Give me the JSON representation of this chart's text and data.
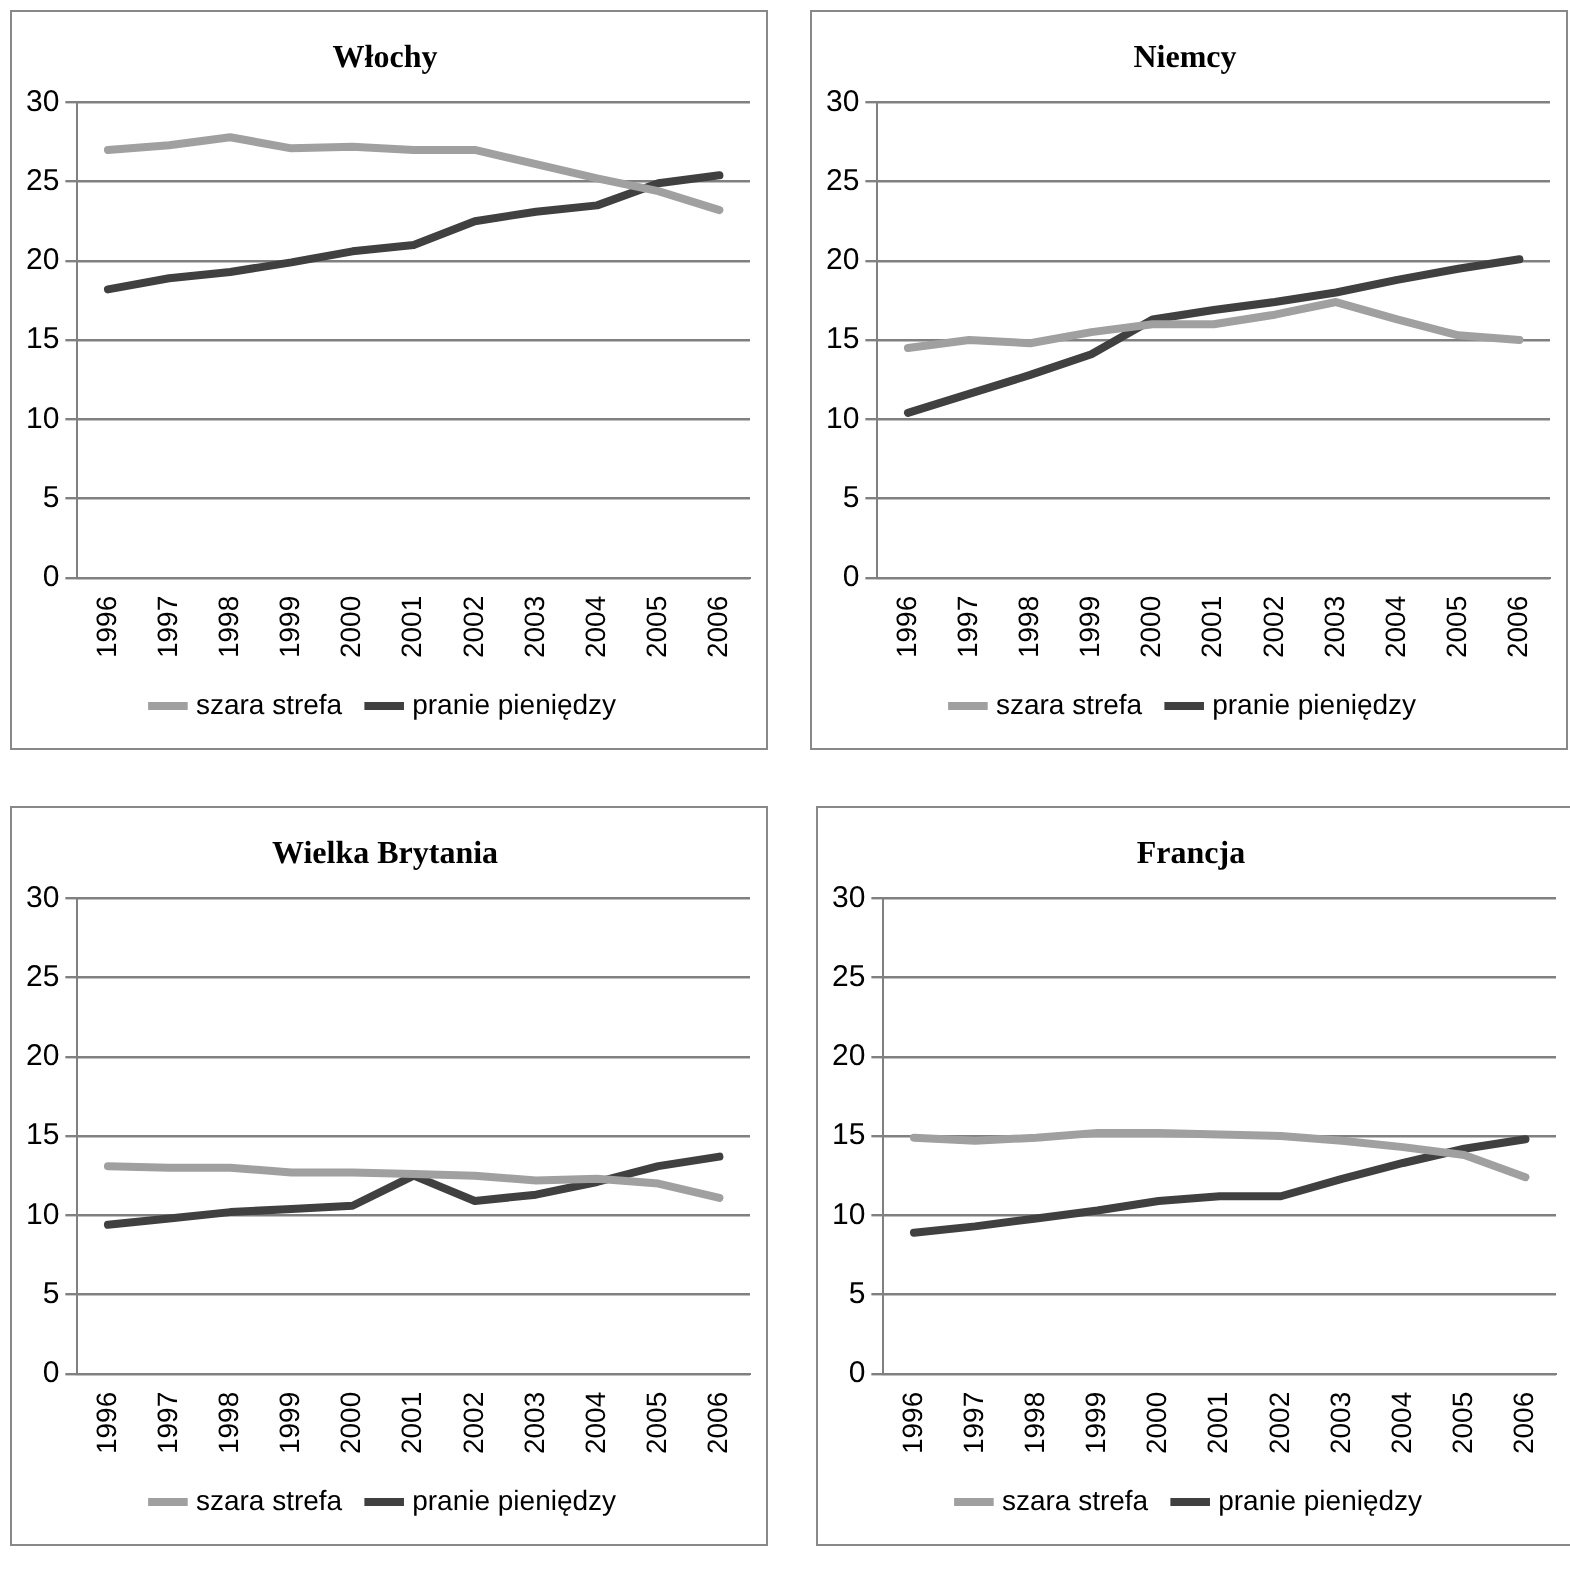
{
  "chart_data": [
    {
      "type": "line",
      "title": "Włochy",
      "categories": [
        "1996",
        "1997",
        "1998",
        "1999",
        "2000",
        "2001",
        "2002",
        "2003",
        "2004",
        "2005",
        "2006"
      ],
      "series": [
        {
          "name": "szara strefa",
          "color": "#a0a0a0",
          "values": [
            27,
            27.3,
            27.8,
            27.1,
            27.2,
            27,
            27,
            26.1,
            25.2,
            24.4,
            23.2
          ]
        },
        {
          "name": "pranie pieniędzy",
          "color": "#404040",
          "values": [
            18.2,
            18.9,
            19.3,
            19.9,
            20.6,
            21,
            22.5,
            23.1,
            23.5,
            24.9,
            25.4
          ]
        }
      ],
      "ylim": [
        0,
        30
      ],
      "yticks": [
        0,
        5,
        10,
        15,
        20,
        25,
        30
      ],
      "grid": "y",
      "legend": "bottom",
      "marker": "none"
    },
    {
      "type": "line",
      "title": "Niemcy",
      "categories": [
        "1996",
        "1997",
        "1998",
        "1999",
        "2000",
        "2001",
        "2002",
        "2003",
        "2004",
        "2005",
        "2006"
      ],
      "series": [
        {
          "name": "szara strefa",
          "color": "#a0a0a0",
          "values": [
            14.5,
            15,
            14.8,
            15.5,
            16,
            16,
            16.6,
            17.4,
            16.3,
            15.3,
            15
          ]
        },
        {
          "name": "pranie pieniędzy",
          "color": "#404040",
          "values": [
            10.4,
            11.6,
            12.8,
            14.1,
            16.3,
            16.9,
            17.4,
            18,
            18.8,
            19.5,
            20.1
          ]
        }
      ],
      "ylim": [
        0,
        30
      ],
      "yticks": [
        0,
        5,
        10,
        15,
        20,
        25,
        30
      ],
      "grid": "y",
      "legend": "bottom",
      "marker": "none"
    },
    {
      "type": "line",
      "title": "Wielka Brytania",
      "categories": [
        "1996",
        "1997",
        "1998",
        "1999",
        "2000",
        "2001",
        "2002",
        "2003",
        "2004",
        "2005",
        "2006"
      ],
      "series": [
        {
          "name": "szara strefa",
          "color": "#a0a0a0",
          "values": [
            13.1,
            13,
            13,
            12.7,
            12.7,
            12.6,
            12.5,
            12.2,
            12.3,
            12,
            11.1
          ]
        },
        {
          "name": "pranie pieniędzy",
          "color": "#404040",
          "values": [
            9.4,
            9.8,
            10.2,
            10.4,
            10.6,
            12.5,
            10.9,
            11.3,
            12.1,
            13.1,
            13.7
          ]
        }
      ],
      "ylim": [
        0,
        30
      ],
      "yticks": [
        0,
        5,
        10,
        15,
        20,
        25,
        30
      ],
      "grid": "y",
      "legend": "bottom",
      "marker": "none"
    },
    {
      "type": "line",
      "title": "Francja",
      "categories": [
        "1996",
        "1997",
        "1998",
        "1999",
        "2000",
        "2001",
        "2002",
        "2003",
        "2004",
        "2005",
        "2006"
      ],
      "series": [
        {
          "name": "szara strefa",
          "color": "#a0a0a0",
          "values": [
            14.9,
            14.7,
            14.9,
            15.2,
            15.2,
            15.1,
            15,
            14.7,
            14.3,
            13.8,
            12.4
          ]
        },
        {
          "name": "pranie pieniędzy",
          "color": "#404040",
          "values": [
            8.9,
            9.3,
            9.8,
            10.3,
            10.9,
            11.2,
            11.2,
            12.3,
            13.3,
            14.2,
            14.8
          ]
        }
      ],
      "ylim": [
        0,
        30
      ],
      "yticks": [
        0,
        5,
        10,
        15,
        20,
        25,
        30
      ],
      "grid": "y",
      "legend": "bottom",
      "marker": "none"
    }
  ]
}
